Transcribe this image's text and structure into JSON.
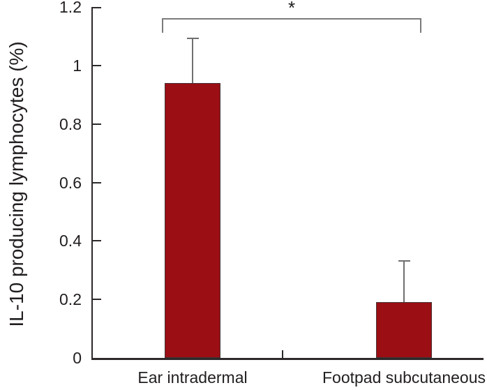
{
  "chart_data": {
    "type": "bar",
    "title": "",
    "ylabel": "IL-10 producing lymphocytes (%)",
    "xlabel": "",
    "categories": [
      "Ear intradermal",
      "Footpad subcutaneous"
    ],
    "values": [
      0.94,
      0.19
    ],
    "error_upper": [
      0.15,
      0.14
    ],
    "ylim": [
      0,
      1.2
    ],
    "ytick_values": [
      0,
      0.2,
      0.4,
      0.6,
      0.8,
      1,
      1.2
    ],
    "ytick_labels": [
      "0",
      "0.2",
      "0.4",
      "0.6",
      "0.8",
      "1",
      "1.2"
    ],
    "grid": false,
    "legend": false,
    "bar_color": "#9b0e14",
    "axis_color": "#2d292a",
    "error_bar_color": "#6f6f6f",
    "bracket_color": "#7b7b7b",
    "significance": {
      "label": "*",
      "between": [
        "Ear intradermal",
        "Footpad subcutaneous"
      ]
    }
  }
}
